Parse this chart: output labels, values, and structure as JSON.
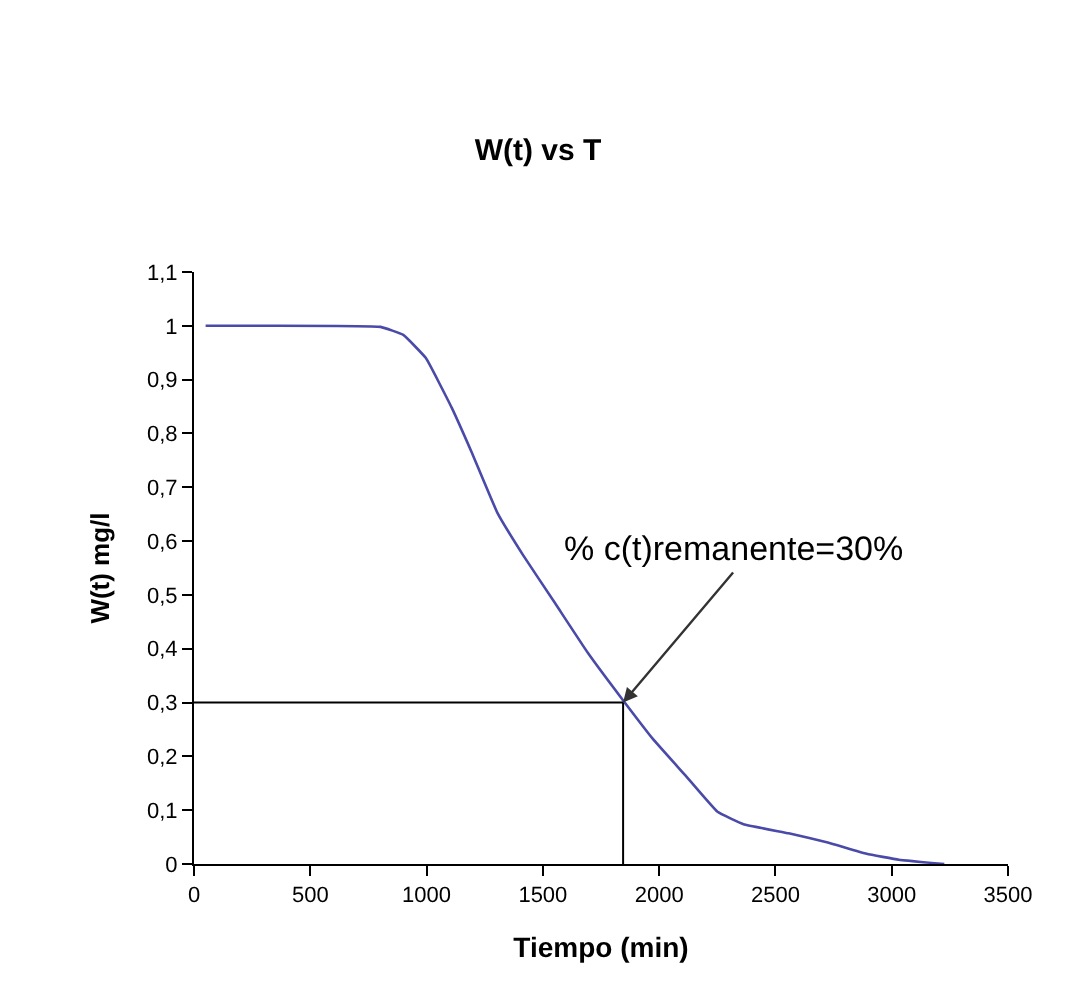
{
  "chart_data": {
    "type": "line",
    "title": "W(t) vs T",
    "xlabel": "Tiempo (min)",
    "ylabel": "W(t) mg/l",
    "x": [
      50,
      802,
      900,
      997,
      1109,
      1192,
      1304,
      1415,
      1555,
      1694,
      1847,
      1972,
      2112,
      2251,
      2363,
      2557,
      2725,
      2892,
      3031,
      3226
    ],
    "series": [
      {
        "color": "#4a4aa8",
        "values": [
          1.0,
          0.998,
          0.983,
          0.94,
          0.847,
          0.767,
          0.653,
          0.574,
          0.483,
          0.392,
          0.303,
          0.233,
          0.165,
          0.097,
          0.074,
          0.057,
          0.04,
          0.019,
          0.008,
          0.0
        ]
      }
    ],
    "xlim": [
      0,
      3500
    ],
    "xticks": [
      0,
      500,
      1000,
      1500,
      2000,
      2500,
      3000,
      3500
    ],
    "ylim": [
      0,
      1.1
    ],
    "yticks": [
      0,
      {
        "value": 0.1,
        "label": "0,1"
      },
      {
        "value": 0.2,
        "label": "0,2"
      },
      {
        "value": 0.3,
        "label": "0,3"
      },
      {
        "value": 0.4,
        "label": "0,4"
      },
      {
        "value": 0.5,
        "label": "0,5"
      },
      {
        "value": 0.6,
        "label": "0,6"
      },
      {
        "value": 0.7,
        "label": "0,7"
      },
      {
        "value": 0.8,
        "label": "0,8"
      },
      {
        "value": 0.9,
        "label": "0,9"
      },
      1,
      {
        "value": 1.1,
        "label": "1,1"
      }
    ],
    "ref_lines": [
      {
        "axis": "y",
        "value": 0.3,
        "color": "#000000"
      },
      {
        "axis": "x",
        "value": 1845,
        "color": "#000000"
      }
    ],
    "annotations": [
      {
        "text": "% c(t)remanente=30%",
        "x": 1845,
        "y": 0.3
      }
    ],
    "marker": "none",
    "line_style": "solid"
  }
}
